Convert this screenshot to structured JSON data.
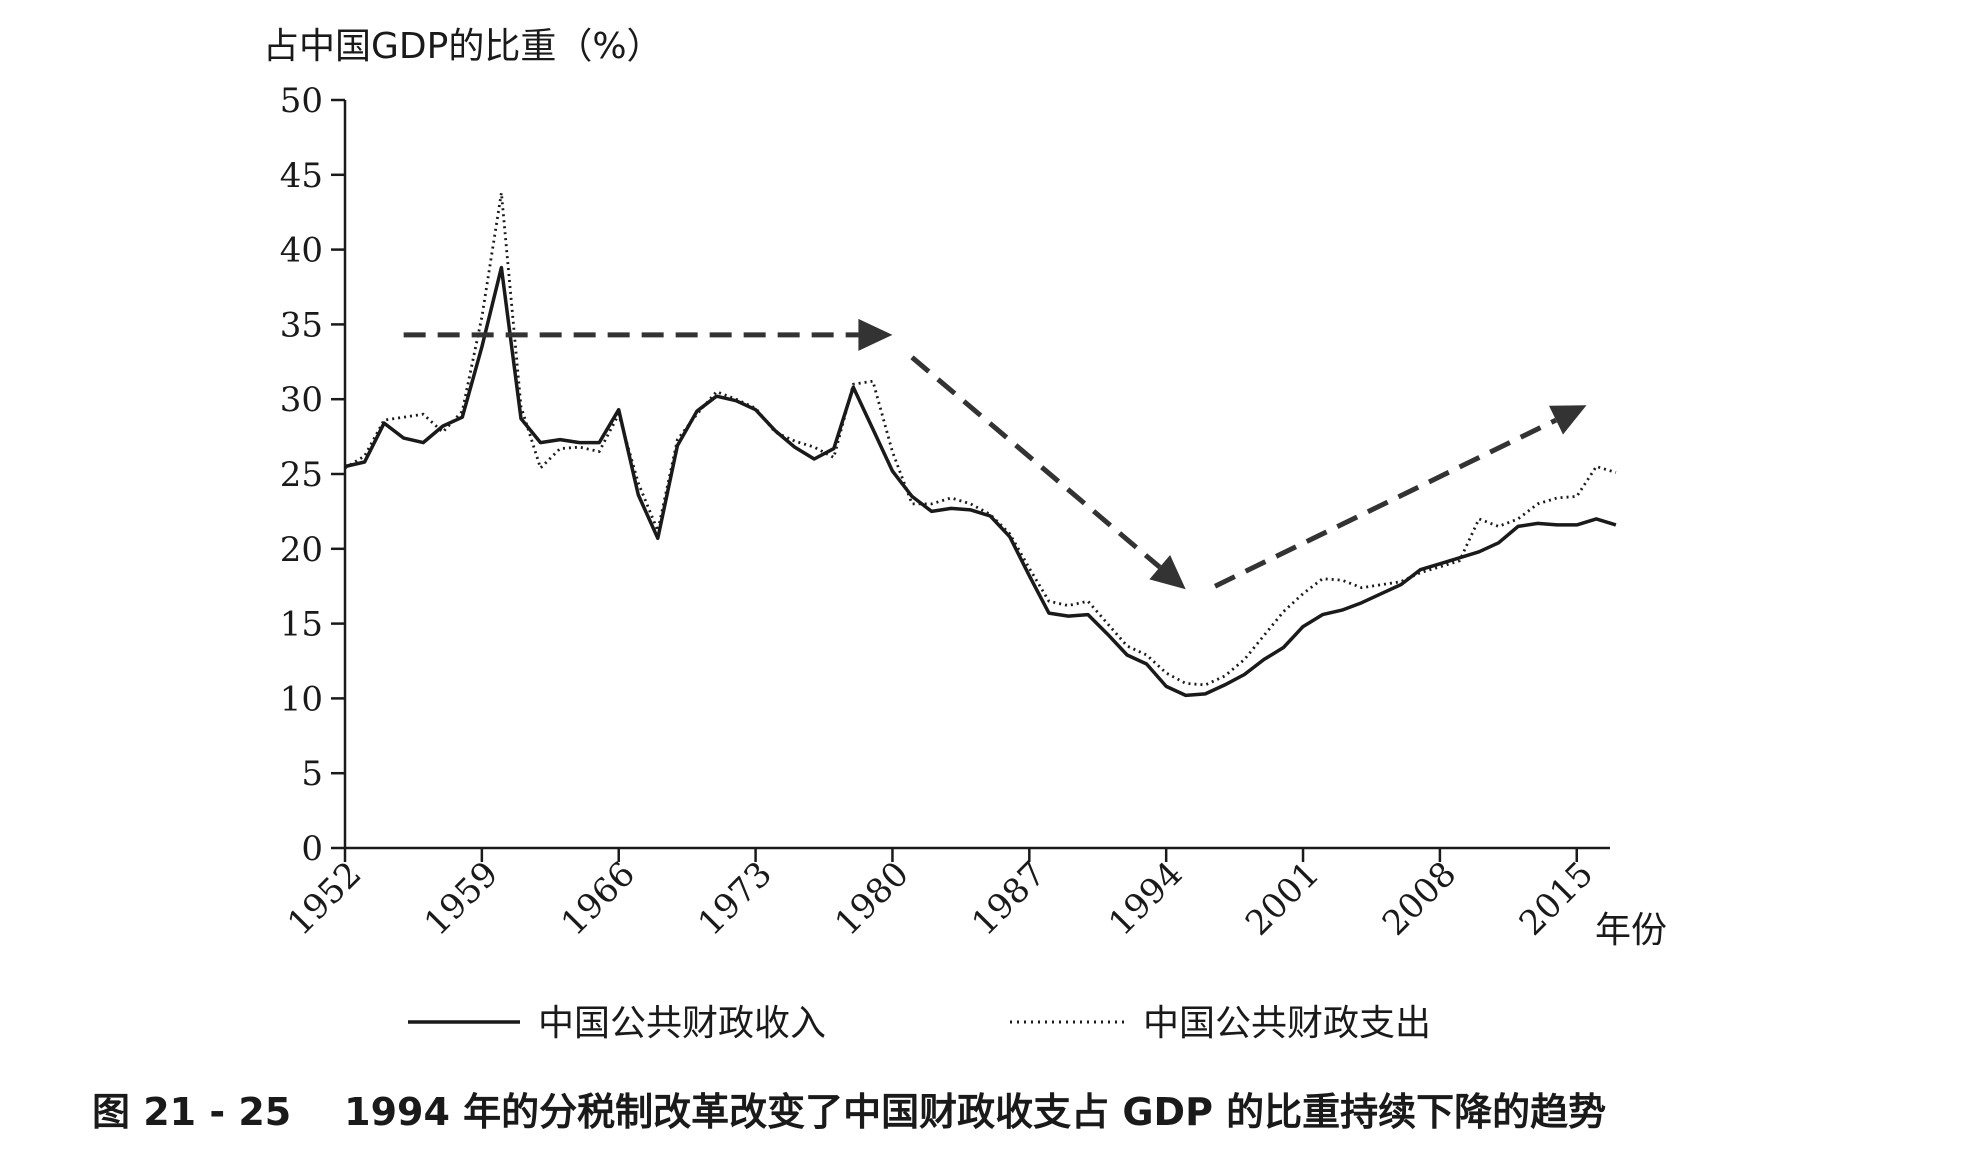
{
  "figure": {
    "caption": "图 21 - 25    1994 年的分税制改革改变了中国财政收支占 GDP 的比重持续下降的趋势"
  },
  "chart_data": {
    "type": "line",
    "ylabel": "占中国GDP的比重（%）",
    "xlabel": "年份",
    "ylim": [
      0,
      50
    ],
    "xlim": [
      1952,
      2018
    ],
    "y_ticks": [
      "0",
      "5",
      "10",
      "15",
      "20",
      "25",
      "30",
      "35",
      "40",
      "45",
      "50"
    ],
    "x_ticks": [
      "1952",
      "1959",
      "1966",
      "1973",
      "1980",
      "1987",
      "1994",
      "2001",
      "2008",
      "2015"
    ],
    "grid": false,
    "legend_position": "bottom",
    "series": [
      {
        "name": "中国公共财政收入",
        "style": "solid",
        "x": [
          1952,
          1953,
          1954,
          1955,
          1956,
          1957,
          1958,
          1959,
          1960,
          1961,
          1962,
          1963,
          1964,
          1965,
          1966,
          1967,
          1968,
          1969,
          1970,
          1971,
          1972,
          1973,
          1974,
          1975,
          1976,
          1977,
          1978,
          1979,
          1980,
          1981,
          1982,
          1983,
          1984,
          1985,
          1986,
          1987,
          1988,
          1989,
          1990,
          1991,
          1992,
          1993,
          1994,
          1995,
          1996,
          1997,
          1998,
          1999,
          2000,
          2001,
          2002,
          2003,
          2004,
          2005,
          2006,
          2007,
          2008,
          2009,
          2010,
          2011,
          2012,
          2013,
          2014,
          2015,
          2016,
          2017
        ],
        "y": [
          25.5,
          25.8,
          28.4,
          27.4,
          27.1,
          28.2,
          28.8,
          33.5,
          38.8,
          28.7,
          27.1,
          27.3,
          27.1,
          27.1,
          29.3,
          23.6,
          20.7,
          26.9,
          29.2,
          30.2,
          29.9,
          29.3,
          27.9,
          26.8,
          26.0,
          26.7,
          30.8,
          28.0,
          25.2,
          23.5,
          22.5,
          22.7,
          22.6,
          22.2,
          20.8,
          18.2,
          15.7,
          15.5,
          15.6,
          14.3,
          12.9,
          12.3,
          10.8,
          10.2,
          10.3,
          10.9,
          11.6,
          12.6,
          13.4,
          14.8,
          15.6,
          15.9,
          16.4,
          17.0,
          17.6,
          18.6,
          19.0,
          19.4,
          19.8,
          20.4,
          21.5,
          21.7,
          21.6,
          21.6,
          22.0,
          21.6
        ]
      },
      {
        "name": "中国公共财政支出",
        "style": "dotted",
        "x": [
          1952,
          1953,
          1954,
          1955,
          1956,
          1957,
          1958,
          1959,
          1960,
          1961,
          1962,
          1963,
          1964,
          1965,
          1966,
          1967,
          1968,
          1969,
          1970,
          1971,
          1972,
          1973,
          1974,
          1975,
          1976,
          1977,
          1978,
          1979,
          1980,
          1981,
          1982,
          1983,
          1984,
          1985,
          1986,
          1987,
          1988,
          1989,
          1990,
          1991,
          1992,
          1993,
          1994,
          1995,
          1996,
          1997,
          1998,
          1999,
          2000,
          2001,
          2002,
          2003,
          2004,
          2005,
          2006,
          2007,
          2008,
          2009,
          2010,
          2011,
          2012,
          2013,
          2014,
          2015,
          2016,
          2017
        ],
        "y": [
          25.4,
          26.2,
          28.6,
          28.8,
          29.0,
          27.8,
          29.2,
          35.5,
          43.8,
          29.5,
          25.4,
          26.7,
          26.8,
          26.5,
          29.0,
          24.4,
          21.2,
          27.3,
          29.0,
          30.5,
          30.0,
          29.4,
          27.8,
          27.2,
          26.8,
          26.1,
          31.0,
          31.2,
          26.5,
          23.0,
          23.0,
          23.4,
          23.0,
          22.3,
          21.0,
          18.7,
          16.5,
          16.2,
          16.5,
          15.0,
          13.5,
          12.9,
          11.7,
          11.0,
          10.9,
          11.5,
          12.6,
          14.2,
          15.8,
          17.0,
          18.0,
          17.9,
          17.4,
          17.6,
          17.8,
          18.4,
          18.8,
          19.2,
          22.0,
          21.5,
          22.0,
          23.0,
          23.4,
          23.5,
          25.5,
          25.1
        ]
      }
    ],
    "annotations": [
      {
        "type": "dashed-arrow",
        "from": {
          "x": 1955,
          "y": 34.3
        },
        "to": {
          "x": 1980,
          "y": 34.3
        }
      },
      {
        "type": "dashed-arrow",
        "from": {
          "x": 1981,
          "y": 32.8
        },
        "to": {
          "x": 1995,
          "y": 17.3
        }
      },
      {
        "type": "dashed-arrow",
        "from": {
          "x": 1996.5,
          "y": 17.5
        },
        "to": {
          "x": 2015.5,
          "y": 29.6
        }
      }
    ]
  }
}
